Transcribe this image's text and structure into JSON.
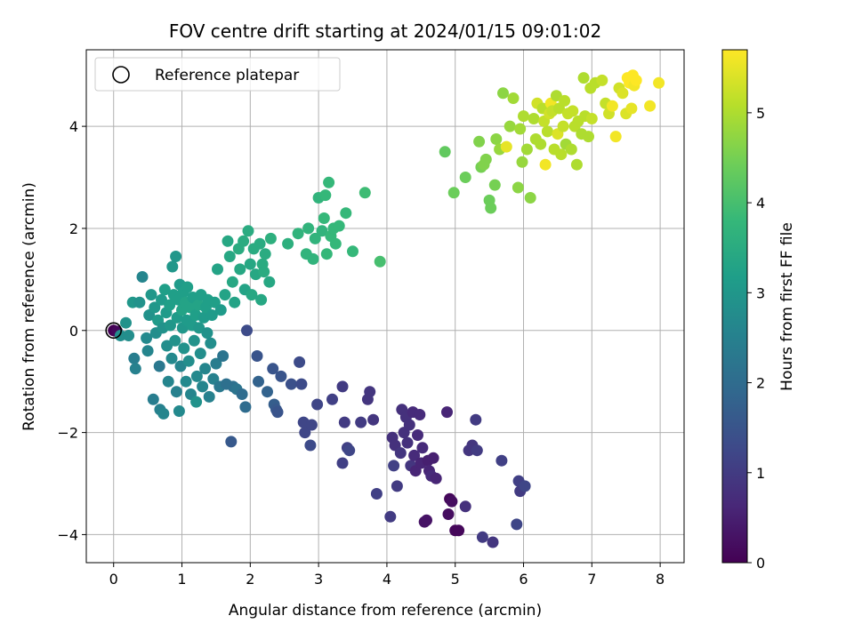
{
  "chart_data": {
    "type": "scatter",
    "title": "FOV centre drift starting at 2024/01/15 09:01:02",
    "xlabel": "Angular distance from reference (arcmin)",
    "ylabel": "Rotation from reference (arcmin)",
    "xlim": [
      -0.4,
      8.35
    ],
    "ylim": [
      -4.55,
      5.5
    ],
    "xticks": [
      0,
      1,
      2,
      3,
      4,
      5,
      6,
      7,
      8
    ],
    "yticks": [
      -4,
      -2,
      0,
      2,
      4
    ],
    "grid": true,
    "legend": {
      "placement": "top-left",
      "entries": [
        {
          "label": "Reference platepar",
          "marker": "open-circle"
        }
      ]
    },
    "reference_point": {
      "x": 0,
      "y": 0
    },
    "colorbar": {
      "label": "Hours from first FF file",
      "range": [
        0,
        5.7
      ],
      "ticks": [
        0,
        1,
        2,
        3,
        4,
        5
      ],
      "colormap": "viridis"
    },
    "colors": {
      "viridis": [
        "#440154",
        "#482878",
        "#3e4989",
        "#31688e",
        "#26828e",
        "#1f9e89",
        "#35b779",
        "#6ece58",
        "#b5de2b",
        "#fde725"
      ]
    },
    "points": [
      [
        0.0,
        0.0,
        0.0
      ],
      [
        0.05,
        -0.02,
        0.1
      ],
      [
        0.1,
        -0.1,
        2.8
      ],
      [
        0.18,
        0.15,
        2.9
      ],
      [
        0.22,
        -0.1,
        2.8
      ],
      [
        0.28,
        0.55,
        3.0
      ],
      [
        0.3,
        -0.55,
        2.4
      ],
      [
        0.32,
        -0.75,
        2.5
      ],
      [
        0.38,
        0.55,
        2.9
      ],
      [
        0.42,
        1.05,
        2.6
      ],
      [
        0.48,
        -0.15,
        2.7
      ],
      [
        0.5,
        -0.4,
        2.6
      ],
      [
        0.52,
        0.3,
        2.9
      ],
      [
        0.55,
        0.7,
        3.0
      ],
      [
        0.58,
        -1.35,
        2.4
      ],
      [
        0.6,
        0.45,
        3.0
      ],
      [
        0.62,
        -0.05,
        2.8
      ],
      [
        0.65,
        0.2,
        3.1
      ],
      [
        0.67,
        -0.7,
        2.3
      ],
      [
        0.68,
        -1.55,
        2.5
      ],
      [
        0.7,
        0.6,
        3.1
      ],
      [
        0.72,
        0.05,
        2.9
      ],
      [
        0.73,
        -1.63,
        2.6
      ],
      [
        0.75,
        0.8,
        3.2
      ],
      [
        0.77,
        0.35,
        3.1
      ],
      [
        0.78,
        -0.3,
        2.8
      ],
      [
        0.8,
        -1.0,
        2.6
      ],
      [
        0.82,
        0.5,
        3.2
      ],
      [
        0.83,
        0.1,
        3.0
      ],
      [
        0.85,
        -0.55,
        2.7
      ],
      [
        0.86,
        1.25,
        3.0
      ],
      [
        0.88,
        0.7,
        3.2
      ],
      [
        0.9,
        -0.2,
        2.9
      ],
      [
        0.91,
        1.45,
        3.0
      ],
      [
        0.92,
        -1.2,
        2.5
      ],
      [
        0.93,
        0.25,
        3.1
      ],
      [
        0.95,
        0.6,
        3.2
      ],
      [
        0.96,
        -1.58,
        2.7
      ],
      [
        0.97,
        0.9,
        3.1
      ],
      [
        0.98,
        -0.7,
        2.6
      ],
      [
        1.0,
        0.4,
        3.3
      ],
      [
        1.01,
        0.05,
        3.0
      ],
      [
        1.02,
        0.75,
        3.2
      ],
      [
        1.03,
        -0.35,
        2.9
      ],
      [
        1.05,
        0.55,
        3.3
      ],
      [
        1.06,
        -1.0,
        2.7
      ],
      [
        1.07,
        0.2,
        3.1
      ],
      [
        1.08,
        0.85,
        3.2
      ],
      [
        1.1,
        -0.6,
        2.8
      ],
      [
        1.12,
        0.45,
        3.3
      ],
      [
        1.13,
        -1.25,
        2.6
      ],
      [
        1.15,
        0.1,
        3.1
      ],
      [
        1.16,
        0.65,
        3.2
      ],
      [
        1.18,
        -0.2,
        2.9
      ],
      [
        1.2,
        0.3,
        3.2
      ],
      [
        1.21,
        -1.4,
        2.9
      ],
      [
        1.22,
        -0.9,
        2.7
      ],
      [
        1.24,
        0.5,
        3.3
      ],
      [
        1.25,
        0.05,
        3.0
      ],
      [
        1.27,
        -0.45,
        2.8
      ],
      [
        1.28,
        0.7,
        3.2
      ],
      [
        1.3,
        -1.1,
        2.6
      ],
      [
        1.32,
        0.25,
        3.1
      ],
      [
        1.34,
        -0.75,
        2.6
      ],
      [
        1.35,
        0.45,
        3.2
      ],
      [
        1.37,
        -0.05,
        2.9
      ],
      [
        1.38,
        0.6,
        3.2
      ],
      [
        1.4,
        -1.3,
        2.5
      ],
      [
        1.42,
        -0.25,
        2.8
      ],
      [
        1.44,
        0.3,
        3.1
      ],
      [
        1.46,
        -0.95,
        2.5
      ],
      [
        1.48,
        0.55,
        3.2
      ],
      [
        1.5,
        -0.65,
        2.4
      ],
      [
        1.52,
        1.2,
        3.3
      ],
      [
        1.55,
        -1.1,
        2.3
      ],
      [
        1.57,
        0.4,
        3.1
      ],
      [
        1.6,
        -0.5,
        2.2
      ],
      [
        1.63,
        0.7,
        3.3
      ],
      [
        1.65,
        -1.05,
        2.1
      ],
      [
        1.67,
        1.75,
        3.4
      ],
      [
        1.7,
        1.45,
        3.4
      ],
      [
        1.72,
        -2.18,
        1.6
      ],
      [
        1.74,
        0.95,
        3.4
      ],
      [
        1.75,
        -1.1,
        2.1
      ],
      [
        1.77,
        0.55,
        3.3
      ],
      [
        1.8,
        -1.15,
        2.2
      ],
      [
        1.83,
        1.6,
        3.5
      ],
      [
        1.85,
        1.2,
        3.4
      ],
      [
        1.88,
        -1.25,
        2.0
      ],
      [
        1.9,
        1.75,
        3.5
      ],
      [
        1.92,
        0.8,
        3.3
      ],
      [
        1.93,
        -1.5,
        2.0
      ],
      [
        1.95,
        0.0,
        1.3
      ],
      [
        1.97,
        1.95,
        3.5
      ],
      [
        2.0,
        1.3,
        3.4
      ],
      [
        2.02,
        0.7,
        3.4
      ],
      [
        2.05,
        1.6,
        3.5
      ],
      [
        2.08,
        1.1,
        3.4
      ],
      [
        2.1,
        -0.5,
        1.5
      ],
      [
        2.12,
        -1.0,
        1.8
      ],
      [
        2.14,
        1.7,
        3.5
      ],
      [
        2.16,
        0.6,
        3.4
      ],
      [
        2.18,
        1.3,
        3.5
      ],
      [
        2.2,
        1.15,
        3.5
      ],
      [
        2.22,
        1.5,
        3.5
      ],
      [
        2.25,
        -1.2,
        1.8
      ],
      [
        2.28,
        0.95,
        3.4
      ],
      [
        2.3,
        1.8,
        3.6
      ],
      [
        2.33,
        -0.75,
        1.5
      ],
      [
        2.35,
        -1.45,
        1.7
      ],
      [
        2.38,
        -1.55,
        1.6
      ],
      [
        2.4,
        -1.6,
        1.5
      ],
      [
        2.45,
        -0.9,
        1.5
      ],
      [
        2.55,
        1.7,
        3.6
      ],
      [
        2.6,
        -1.05,
        1.4
      ],
      [
        2.7,
        1.9,
        3.7
      ],
      [
        2.72,
        -0.62,
        1.3
      ],
      [
        2.75,
        -1.05,
        1.3
      ],
      [
        2.78,
        -1.8,
        1.2
      ],
      [
        2.8,
        -2.0,
        1.2
      ],
      [
        2.82,
        1.5,
        3.7
      ],
      [
        2.85,
        2.0,
        3.7
      ],
      [
        2.88,
        -2.25,
        1.3
      ],
      [
        2.9,
        -1.85,
        1.2
      ],
      [
        2.92,
        1.4,
        3.7
      ],
      [
        2.95,
        1.8,
        3.7
      ],
      [
        2.98,
        -1.45,
        1.2
      ],
      [
        3.0,
        2.6,
        3.7
      ],
      [
        3.05,
        1.95,
        3.7
      ],
      [
        3.08,
        2.2,
        3.8
      ],
      [
        3.1,
        2.65,
        3.8
      ],
      [
        3.12,
        1.5,
        3.8
      ],
      [
        3.15,
        2.9,
        3.8
      ],
      [
        3.18,
        1.85,
        3.8
      ],
      [
        3.2,
        -1.35,
        1.1
      ],
      [
        3.22,
        2.0,
        3.8
      ],
      [
        3.25,
        1.7,
        3.8
      ],
      [
        3.3,
        2.05,
        3.8
      ],
      [
        3.35,
        -2.6,
        1.1
      ],
      [
        3.35,
        -1.1,
        1.0
      ],
      [
        3.38,
        -1.8,
        1.0
      ],
      [
        3.4,
        2.3,
        3.8
      ],
      [
        3.42,
        -2.3,
        1.1
      ],
      [
        3.45,
        -2.35,
        1.2
      ],
      [
        3.5,
        1.55,
        3.8
      ],
      [
        3.62,
        -1.8,
        1.0
      ],
      [
        3.68,
        2.7,
        3.9
      ],
      [
        3.72,
        -1.35,
        0.9
      ],
      [
        3.75,
        -1.2,
        0.9
      ],
      [
        3.8,
        -1.75,
        0.9
      ],
      [
        3.85,
        -3.2,
        1.1
      ],
      [
        3.9,
        1.35,
        4.0
      ],
      [
        4.05,
        -3.65,
        1.0
      ],
      [
        4.08,
        -2.1,
        0.8
      ],
      [
        4.1,
        -2.65,
        1.1
      ],
      [
        4.12,
        -2.25,
        0.8
      ],
      [
        4.15,
        -3.05,
        1.0
      ],
      [
        4.2,
        -2.4,
        0.9
      ],
      [
        4.22,
        -1.55,
        0.8
      ],
      [
        4.25,
        -2.0,
        0.8
      ],
      [
        4.28,
        -1.7,
        0.8
      ],
      [
        4.3,
        -2.2,
        0.8
      ],
      [
        4.33,
        -1.85,
        0.8
      ],
      [
        4.35,
        -2.65,
        0.9
      ],
      [
        4.38,
        -1.6,
        0.7
      ],
      [
        4.4,
        -2.45,
        0.7
      ],
      [
        4.42,
        -2.75,
        0.6
      ],
      [
        4.45,
        -2.05,
        0.7
      ],
      [
        4.48,
        -1.65,
        0.7
      ],
      [
        4.5,
        -2.6,
        0.6
      ],
      [
        4.52,
        -2.3,
        0.7
      ],
      [
        4.55,
        -3.75,
        0.3
      ],
      [
        4.58,
        -3.72,
        0.3
      ],
      [
        4.6,
        -2.55,
        0.5
      ],
      [
        4.62,
        -2.75,
        0.6
      ],
      [
        4.65,
        -2.85,
        0.7
      ],
      [
        4.68,
        -2.5,
        0.5
      ],
      [
        4.72,
        -2.9,
        0.6
      ],
      [
        4.85,
        3.5,
        4.3
      ],
      [
        4.88,
        -1.6,
        0.6
      ],
      [
        4.9,
        -3.6,
        0.2
      ],
      [
        4.92,
        -3.3,
        0.1
      ],
      [
        4.95,
        -3.35,
        0.2
      ],
      [
        4.98,
        2.7,
        4.4
      ],
      [
        5.0,
        -3.92,
        0.1
      ],
      [
        5.05,
        -3.92,
        0.1
      ],
      [
        5.15,
        -3.45,
        0.8
      ],
      [
        5.15,
        3.0,
        4.4
      ],
      [
        5.2,
        -2.35,
        0.9
      ],
      [
        5.25,
        -2.25,
        0.9
      ],
      [
        5.3,
        -1.75,
        1.0
      ],
      [
        5.32,
        -2.35,
        1.0
      ],
      [
        5.35,
        3.7,
        4.6
      ],
      [
        5.38,
        3.2,
        4.5
      ],
      [
        5.4,
        -4.05,
        1.0
      ],
      [
        5.42,
        3.25,
        4.6
      ],
      [
        5.45,
        3.35,
        4.6
      ],
      [
        5.5,
        2.55,
        4.4
      ],
      [
        5.52,
        2.4,
        4.4
      ],
      [
        5.55,
        -4.15,
        0.9
      ],
      [
        5.58,
        2.85,
        4.5
      ],
      [
        5.6,
        3.75,
        4.7
      ],
      [
        5.65,
        3.55,
        4.8
      ],
      [
        5.68,
        -2.55,
        1.1
      ],
      [
        5.7,
        4.65,
        4.7
      ],
      [
        5.75,
        3.6,
        5.5
      ],
      [
        5.8,
        4.0,
        4.8
      ],
      [
        5.85,
        4.55,
        4.9
      ],
      [
        5.9,
        -3.8,
        1.2
      ],
      [
        5.92,
        2.8,
        4.7
      ],
      [
        5.93,
        -2.95,
        1.1
      ],
      [
        5.95,
        -3.15,
        1.0
      ],
      [
        5.95,
        3.95,
        4.9
      ],
      [
        5.98,
        3.3,
        4.8
      ],
      [
        6.0,
        4.2,
        5.0
      ],
      [
        6.02,
        -3.05,
        1.2
      ],
      [
        6.05,
        3.55,
        4.9
      ],
      [
        6.1,
        2.6,
        4.7
      ],
      [
        6.15,
        4.15,
        5.0
      ],
      [
        6.18,
        3.75,
        5.0
      ],
      [
        6.2,
        4.45,
        5.3
      ],
      [
        6.25,
        3.65,
        5.0
      ],
      [
        6.28,
        4.35,
        5.1
      ],
      [
        6.3,
        4.1,
        5.2
      ],
      [
        6.32,
        3.25,
        5.6
      ],
      [
        6.35,
        3.9,
        5.1
      ],
      [
        6.38,
        4.25,
        5.3
      ],
      [
        6.4,
        4.45,
        5.6
      ],
      [
        6.42,
        4.3,
        5.2
      ],
      [
        6.45,
        3.55,
        5.1
      ],
      [
        6.48,
        4.6,
        5.0
      ],
      [
        6.5,
        3.85,
        5.4
      ],
      [
        6.52,
        4.35,
        5.1
      ],
      [
        6.55,
        3.45,
        5.1
      ],
      [
        6.58,
        4.0,
        5.2
      ],
      [
        6.6,
        4.5,
        5.1
      ],
      [
        6.62,
        3.65,
        4.9
      ],
      [
        6.65,
        4.25,
        5.2
      ],
      [
        6.7,
        3.55,
        5.0
      ],
      [
        6.72,
        4.3,
        5.2
      ],
      [
        6.75,
        4.0,
        5.1
      ],
      [
        6.78,
        3.25,
        5.0
      ],
      [
        6.8,
        4.1,
        5.1
      ],
      [
        6.85,
        3.85,
        5.0
      ],
      [
        6.88,
        4.95,
        5.0
      ],
      [
        6.9,
        4.2,
        5.1
      ],
      [
        6.95,
        3.8,
        5.0
      ],
      [
        6.98,
        4.75,
        5.1
      ],
      [
        7.0,
        4.15,
        5.2
      ],
      [
        7.05,
        4.85,
        5.1
      ],
      [
        7.15,
        4.9,
        5.2
      ],
      [
        7.2,
        4.45,
        5.2
      ],
      [
        7.25,
        4.25,
        5.3
      ],
      [
        7.3,
        4.4,
        5.6
      ],
      [
        7.35,
        3.8,
        5.6
      ],
      [
        7.4,
        4.75,
        5.3
      ],
      [
        7.45,
        4.65,
        5.4
      ],
      [
        7.5,
        4.25,
        5.4
      ],
      [
        7.52,
        4.95,
        5.7
      ],
      [
        7.55,
        4.85,
        5.7
      ],
      [
        7.58,
        4.35,
        5.5
      ],
      [
        7.6,
        5.0,
        5.7
      ],
      [
        7.62,
        4.8,
        5.6
      ],
      [
        7.65,
        4.9,
        5.7
      ],
      [
        7.85,
        4.4,
        5.6
      ],
      [
        7.98,
        4.85,
        5.6
      ]
    ]
  }
}
